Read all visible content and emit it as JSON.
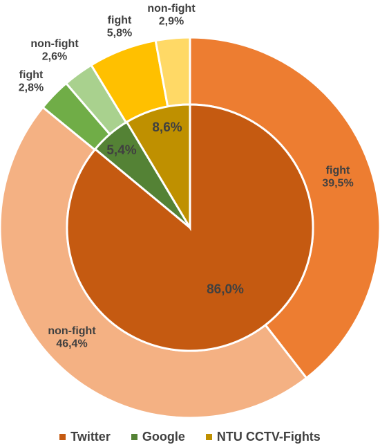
{
  "chart_data": {
    "type": "pie",
    "subtype": "nested-donut",
    "inner": [
      {
        "name": "Twitter",
        "label": "86,0%",
        "value": 86.0,
        "color": "#C55A11"
      },
      {
        "name": "Google",
        "label": "5,4%",
        "value": 5.4,
        "color": "#548235"
      },
      {
        "name": "NTU CCTV-Fights",
        "label": "8,6%",
        "value": 8.6,
        "color": "#BF9000"
      }
    ],
    "outer": [
      {
        "group": "Twitter",
        "name": "fight",
        "pct": "39,5%",
        "value": 39.5,
        "color": "#ED7D31"
      },
      {
        "group": "Twitter",
        "name": "non-fight",
        "pct": "46,4%",
        "value": 46.4,
        "color": "#F4B183"
      },
      {
        "group": "Google",
        "name": "fight",
        "pct": "2,8%",
        "value": 2.8,
        "color": "#70AD47"
      },
      {
        "group": "Google",
        "name": "non-fight",
        "pct": "2,6%",
        "value": 2.6,
        "color": "#A9D18E"
      },
      {
        "group": "NTU CCTV-Fights",
        "name": "fight",
        "pct": "5,8%",
        "value": 5.8,
        "color": "#FFC000"
      },
      {
        "group": "NTU CCTV-Fights",
        "name": "non-fight",
        "pct": "2,9%",
        "value": 2.9,
        "color": "#FFD966"
      }
    ],
    "legend": [
      {
        "label": "Twitter",
        "color": "#C55A11"
      },
      {
        "label": "Google",
        "color": "#548235"
      },
      {
        "label": "NTU CCTV-Fights",
        "color": "#BF9000"
      }
    ],
    "legend_position": "bottom",
    "start_angle": "top, clockwise"
  }
}
